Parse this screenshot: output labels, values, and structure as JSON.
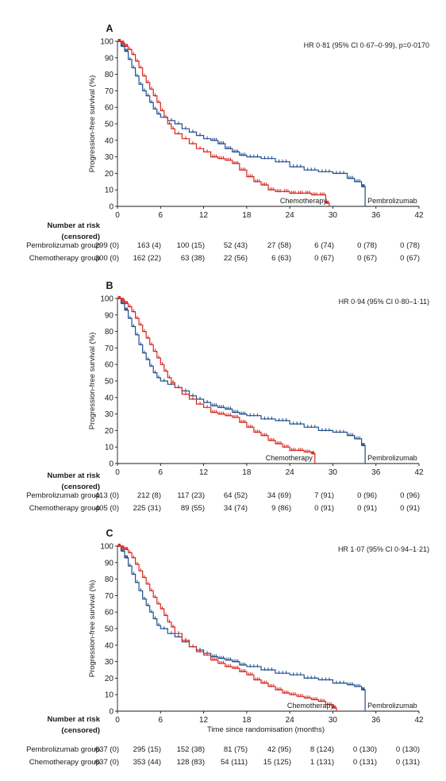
{
  "colors": {
    "pembrolizumab": "#1f4e8c",
    "chemotherapy": "#d7261e"
  },
  "chart_data": [
    {
      "type": "line",
      "panel": "A",
      "hr_text": "HR 0·81 (95% CI 0·67–0·99), p=0·0170",
      "ylabel": "Progression-free survival (%)",
      "xlabel": "",
      "xlim": [
        0,
        42
      ],
      "ylim": [
        0,
        100
      ],
      "xticks": [
        "0",
        "6",
        "12",
        "18",
        "24",
        "30",
        "36",
        "42"
      ],
      "yticks": [
        "0",
        "10",
        "20",
        "30",
        "40",
        "50",
        "60",
        "70",
        "80",
        "90",
        "100"
      ],
      "series": [
        {
          "name": "Pembrolizumab",
          "x": [
            0,
            0.5,
            1,
            1.5,
            2,
            2.5,
            3,
            3.5,
            4,
            4.5,
            5,
            5.5,
            6,
            7,
            8,
            9,
            10,
            11,
            12,
            13,
            14,
            15,
            16,
            17,
            18,
            20,
            22,
            24,
            26,
            28,
            30,
            32,
            33,
            34,
            34.5
          ],
          "y": [
            100,
            97,
            94,
            89,
            84,
            79,
            74,
            70,
            67,
            63,
            59,
            56,
            54,
            52,
            50,
            47,
            45,
            43,
            41,
            40,
            38,
            35,
            33,
            31,
            30,
            29,
            27,
            24,
            22,
            21,
            20,
            17,
            15,
            12,
            0
          ]
        },
        {
          "name": "Chemotherapy",
          "x": [
            0,
            0.5,
            1,
            1.5,
            2,
            2.5,
            3,
            3.5,
            4,
            4.5,
            5,
            5.5,
            6,
            6.5,
            7,
            7.5,
            8,
            9,
            10,
            11,
            12,
            13,
            14,
            15,
            16,
            17,
            18,
            19,
            20,
            21,
            22,
            23,
            24,
            25,
            26,
            27,
            28,
            29,
            29.5
          ],
          "y": [
            100,
            99,
            97,
            95,
            92,
            88,
            84,
            79,
            75,
            71,
            67,
            63,
            58,
            54,
            50,
            47,
            44,
            41,
            38,
            35,
            33,
            30,
            29,
            28,
            26,
            22,
            18,
            15,
            13,
            10,
            9,
            9,
            8,
            8,
            8,
            7,
            7,
            2,
            0
          ]
        }
      ],
      "labels": {
        "chemo": "Chemotherapy",
        "pembro": "Pembrolizumab"
      },
      "risk_table": {
        "title_line1": "Number at risk",
        "title_line2": "(censored)",
        "rows": [
          {
            "group": "Pembrolizumab group",
            "values": [
              "299 (0)",
              "163 (4)",
              "100 (15)",
              "52 (43)",
              "27 (58)",
              "6 (74)",
              "0 (78)",
              "0 (78)"
            ]
          },
          {
            "group": "Chemotherapy group",
            "values": [
              "300 (0)",
              "162 (22)",
              "63 (38)",
              "22 (56)",
              "6 (63)",
              "0 (67)",
              "0 (67)",
              "0 (67)"
            ]
          }
        ]
      }
    },
    {
      "type": "line",
      "panel": "B",
      "hr_text": "HR 0·94 (95% CI 0·80–1·11)",
      "ylabel": "Progression-free survival (%)",
      "xlabel": "",
      "xlim": [
        0,
        42
      ],
      "ylim": [
        0,
        100
      ],
      "xticks": [
        "0",
        "6",
        "12",
        "18",
        "24",
        "30",
        "36",
        "42"
      ],
      "yticks": [
        "0",
        "10",
        "20",
        "30",
        "40",
        "50",
        "60",
        "70",
        "80",
        "90",
        "100"
      ],
      "series": [
        {
          "name": "Pembrolizumab",
          "x": [
            0,
            0.5,
            1,
            1.5,
            2,
            2.5,
            3,
            3.5,
            4,
            4.5,
            5,
            5.5,
            6,
            7,
            8,
            9,
            10,
            11,
            12,
            13,
            14,
            15,
            16,
            17,
            18,
            20,
            22,
            24,
            26,
            28,
            30,
            32,
            33,
            34,
            34.5
          ],
          "y": [
            100,
            97,
            93,
            88,
            83,
            78,
            72,
            67,
            63,
            59,
            55,
            52,
            50,
            48,
            46,
            44,
            41,
            39,
            37,
            35,
            34,
            33,
            31,
            30,
            29,
            27,
            26,
            24,
            22,
            20,
            19,
            17,
            15,
            11,
            0
          ]
        },
        {
          "name": "Chemotherapy",
          "x": [
            0,
            0.5,
            1,
            1.5,
            2,
            2.5,
            3,
            3.5,
            4,
            4.5,
            5,
            5.5,
            6,
            6.5,
            7,
            7.5,
            8,
            9,
            10,
            11,
            12,
            13,
            14,
            15,
            16,
            17,
            18,
            19,
            20,
            21,
            22,
            23,
            24,
            25,
            26,
            27,
            27.5
          ],
          "y": [
            100,
            99,
            97,
            95,
            92,
            88,
            84,
            80,
            76,
            72,
            68,
            64,
            60,
            56,
            52,
            49,
            46,
            42,
            39,
            36,
            34,
            31,
            30,
            29,
            28,
            25,
            22,
            19,
            17,
            14,
            12,
            10,
            8,
            8,
            7,
            6,
            0
          ]
        }
      ],
      "labels": {
        "chemo": "Chemotherapy",
        "pembro": "Pembrolizumab"
      },
      "risk_table": {
        "title_line1": "Number at risk",
        "title_line2": "(censored)",
        "rows": [
          {
            "group": "Pembrolizumab group",
            "values": [
              "413 (0)",
              "212 (8)",
              "117 (23)",
              "64 (52)",
              "34 (69)",
              "7 (91)",
              "0 (96)",
              "0 (96)"
            ]
          },
          {
            "group": "Chemotherapy group",
            "values": [
              "405 (0)",
              "225 (31)",
              "89 (55)",
              "34 (74)",
              "9 (86)",
              "0 (91)",
              "0 (91)",
              "0 (91)"
            ]
          }
        ]
      }
    },
    {
      "type": "line",
      "panel": "C",
      "hr_text": "HR 1·07 (95% CI 0·94–1·21)",
      "ylabel": "Progression-free survival (%)",
      "xlabel": "Time since randomisation (months)",
      "xlim": [
        0,
        42
      ],
      "ylim": [
        0,
        100
      ],
      "xticks": [
        "0",
        "6",
        "12",
        "18",
        "24",
        "30",
        "36",
        "42"
      ],
      "yticks": [
        "0",
        "10",
        "20",
        "30",
        "40",
        "50",
        "60",
        "70",
        "80",
        "90",
        "100"
      ],
      "series": [
        {
          "name": "Pembrolizumab",
          "x": [
            0,
            0.5,
            1,
            1.5,
            2,
            2.5,
            3,
            3.5,
            4,
            4.5,
            5,
            5.5,
            6,
            7,
            8,
            9,
            10,
            11,
            12,
            13,
            14,
            15,
            16,
            17,
            18,
            20,
            22,
            24,
            26,
            28,
            30,
            32,
            33,
            34,
            34.5
          ],
          "y": [
            100,
            97,
            93,
            88,
            83,
            78,
            73,
            68,
            64,
            60,
            56,
            52,
            50,
            47,
            45,
            42,
            39,
            37,
            35,
            33,
            32,
            31,
            30,
            28,
            27,
            25,
            23,
            22,
            20,
            19,
            17,
            16,
            15,
            13,
            0
          ]
        },
        {
          "name": "Chemotherapy",
          "x": [
            0,
            0.5,
            1,
            1.5,
            2,
            2.5,
            3,
            3.5,
            4,
            4.5,
            5,
            5.5,
            6,
            6.5,
            7,
            7.5,
            8,
            9,
            10,
            11,
            12,
            13,
            14,
            15,
            16,
            17,
            18,
            19,
            20,
            21,
            22,
            23,
            24,
            25,
            26,
            27,
            28,
            29,
            30,
            30.5
          ],
          "y": [
            100,
            99,
            98,
            96,
            93,
            89,
            85,
            81,
            77,
            73,
            69,
            65,
            62,
            58,
            54,
            51,
            47,
            43,
            39,
            36,
            34,
            31,
            29,
            27,
            26,
            24,
            22,
            19,
            17,
            15,
            13,
            11,
            10,
            9,
            8,
            7,
            6,
            4,
            2,
            0
          ]
        }
      ],
      "labels": {
        "chemo": "Chemotherapy",
        "pembro": "Pembrolizumab"
      },
      "risk_table": {
        "title_line1": "Number at risk",
        "title_line2": "(censored)",
        "rows": [
          {
            "group": "Pembrolizumab group",
            "values": [
              "637 (0)",
              "295 (15)",
              "152 (38)",
              "81 (75)",
              "42 (95)",
              "8 (124)",
              "0 (130)",
              "0 (130)"
            ]
          },
          {
            "group": "Chemotherapy group",
            "values": [
              "637 (0)",
              "353 (44)",
              "128 (83)",
              "54 (111)",
              "15 (125)",
              "1 (131)",
              "0 (131)",
              "0 (131)"
            ]
          }
        ]
      }
    }
  ]
}
